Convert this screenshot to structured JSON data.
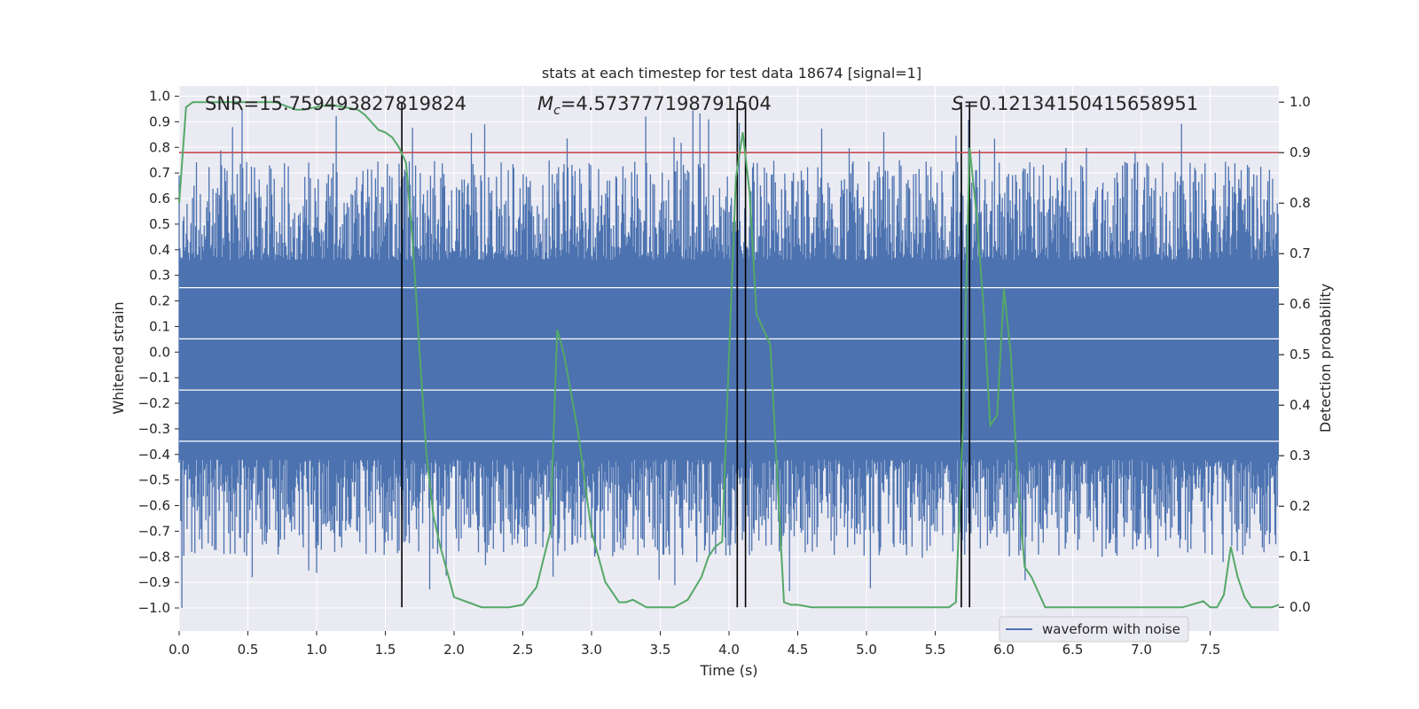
{
  "chart_data": {
    "type": "line",
    "title": "stats at each timestep for test data 18674 [signal=1]",
    "xlabel": "Time (s)",
    "ylabel_left": "Whitened strain",
    "ylabel_right": "Detection probability",
    "xlim": [
      0.0,
      8.0
    ],
    "ylim_left": [
      -1.09,
      1.04
    ],
    "ylim_right": [
      -0.047,
      1.032
    ],
    "x_ticks": [
      "0.0",
      "0.5",
      "1.0",
      "1.5",
      "2.0",
      "2.5",
      "3.0",
      "3.5",
      "4.0",
      "4.5",
      "5.0",
      "5.5",
      "6.0",
      "6.5",
      "7.0",
      "7.5"
    ],
    "x_tick_values": [
      0.0,
      0.5,
      1.0,
      1.5,
      2.0,
      2.5,
      3.0,
      3.5,
      4.0,
      4.5,
      5.0,
      5.5,
      6.0,
      6.5,
      7.0,
      7.5
    ],
    "y_left_ticks": [
      "1.0",
      "0.9",
      "0.8",
      "0.7",
      "0.6",
      "0.5",
      "0.4",
      "0.3",
      "0.2",
      "0.1",
      "0.0",
      "−0.1",
      "−0.2",
      "−0.3",
      "−0.4",
      "−0.5",
      "−0.6",
      "−0.7",
      "−0.8",
      "−0.9",
      "−1.0"
    ],
    "y_left_tick_values": [
      1.0,
      0.9,
      0.8,
      0.7,
      0.6,
      0.5,
      0.4,
      0.3,
      0.2,
      0.1,
      0.0,
      -0.1,
      -0.2,
      -0.3,
      -0.4,
      -0.5,
      -0.6,
      -0.7,
      -0.8,
      -0.9,
      -1.0
    ],
    "y_right_ticks": [
      "1.0",
      "0.9",
      "0.8",
      "0.7",
      "0.6",
      "0.5",
      "0.4",
      "0.3",
      "0.2",
      "0.1",
      "0.0"
    ],
    "y_right_tick_values": [
      1.0,
      0.9,
      0.8,
      0.7,
      0.6,
      0.5,
      0.4,
      0.3,
      0.2,
      0.1,
      0.0
    ],
    "grid": true,
    "annotations": [
      {
        "text": "SNR=15.759493827819824",
        "x": 0.2
      },
      {
        "text": "=4.573777198791504",
        "math_prefix": "M",
        "math_sub": "c",
        "x": 2.6
      },
      {
        "text": "=0.12134150415658951",
        "math_prefix": "S",
        "x": 5.6
      }
    ],
    "threshold": {
      "value": 0.9,
      "axis": "right",
      "color": "#c44e52"
    },
    "vertical_markers": [
      1.62,
      4.06,
      4.12,
      5.69,
      5.75
    ],
    "legend": {
      "entries": [
        "waveform with noise"
      ],
      "position": "lower-right"
    },
    "series": [
      {
        "name": "waveform with noise",
        "axis": "left",
        "color": "#4c72b0",
        "style": "noise-envelope",
        "duration": 8.0,
        "core_band": [
          -0.42,
          0.36
        ],
        "typical_peak_range": [
          0.45,
          0.75
        ],
        "max_value": 0.95,
        "min_value": -1.0
      },
      {
        "name": "detection probability",
        "axis": "right",
        "color": "#55a868",
        "x": [
          0.0,
          0.05,
          0.1,
          0.15,
          0.2,
          0.3,
          0.4,
          0.5,
          0.6,
          0.7,
          0.8,
          0.85,
          0.9,
          1.0,
          1.1,
          1.2,
          1.3,
          1.35,
          1.4,
          1.45,
          1.5,
          1.55,
          1.6,
          1.65,
          1.7,
          1.75,
          1.8,
          1.85,
          1.9,
          1.95,
          2.0,
          2.1,
          2.2,
          2.3,
          2.4,
          2.5,
          2.6,
          2.7,
          2.75,
          2.8,
          2.9,
          3.0,
          3.1,
          3.2,
          3.25,
          3.3,
          3.4,
          3.5,
          3.6,
          3.7,
          3.8,
          3.85,
          3.9,
          3.95,
          4.0,
          4.05,
          4.1,
          4.15,
          4.2,
          4.3,
          4.4,
          4.45,
          4.5,
          4.6,
          4.8,
          5.0,
          5.5,
          5.6,
          5.65,
          5.7,
          5.75,
          5.8,
          5.85,
          5.9,
          5.95,
          6.0,
          6.05,
          6.1,
          6.15,
          6.2,
          6.3,
          6.5,
          7.0,
          7.3,
          7.45,
          7.5,
          7.55,
          7.6,
          7.65,
          7.7,
          7.75,
          7.8,
          7.85,
          7.9,
          7.95,
          8.0
        ],
        "y": [
          0.8,
          0.99,
          1.0,
          1.0,
          1.0,
          1.0,
          1.0,
          1.0,
          1.0,
          1.0,
          0.99,
          0.985,
          0.985,
          0.99,
          0.995,
          0.99,
          0.985,
          0.975,
          0.96,
          0.945,
          0.94,
          0.93,
          0.91,
          0.88,
          0.72,
          0.5,
          0.3,
          0.18,
          0.12,
          0.07,
          0.02,
          0.01,
          0.0,
          0.0,
          0.0,
          0.005,
          0.04,
          0.15,
          0.55,
          0.5,
          0.35,
          0.15,
          0.05,
          0.01,
          0.01,
          0.015,
          0.0,
          0.0,
          0.0,
          0.015,
          0.06,
          0.1,
          0.12,
          0.13,
          0.5,
          0.85,
          0.94,
          0.82,
          0.58,
          0.52,
          0.01,
          0.005,
          0.005,
          0.0,
          0.0,
          0.0,
          0.0,
          0.0,
          0.01,
          0.35,
          0.91,
          0.78,
          0.6,
          0.36,
          0.38,
          0.63,
          0.5,
          0.25,
          0.08,
          0.06,
          0.0,
          0.0,
          0.0,
          0.0,
          0.012,
          0.0,
          0.0,
          0.025,
          0.12,
          0.06,
          0.02,
          0.0,
          0.0,
          0.0,
          0.0,
          0.005
        ]
      }
    ]
  }
}
